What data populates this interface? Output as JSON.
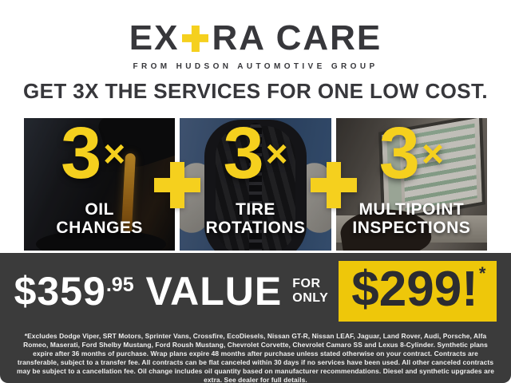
{
  "colors": {
    "accent_yellow": "#F5D01E",
    "sale_box_yellow": "#EEC70A",
    "charcoal_text": "#37373B",
    "band_gray": "#3B3B3B"
  },
  "logo": {
    "prefix": "EX",
    "plus_glyph": "+",
    "suffix": "RA CARE",
    "tagline": "FROM HUDSON AUTOMOTIVE GROUP"
  },
  "headline": "GET 3X THE SERVICES FOR ONE LOW COST.",
  "services": [
    {
      "number": "3",
      "times": "×",
      "label_line1": "OIL",
      "label_line2": "CHANGES",
      "photo": "motor-oil-pouring-from-bottle"
    },
    {
      "number": "3",
      "times": "×",
      "label_line1": "TIRE",
      "label_line2": "ROTATIONS",
      "photo": "mechanic-holding-tire"
    },
    {
      "number": "3",
      "times": "×",
      "label_line1": "MULTIPOINT",
      "label_line2": "INSPECTIONS",
      "photo": "laptop-inspection-checklist"
    }
  ],
  "plus_separator": "+",
  "offer": {
    "value_dollars": "$359",
    "value_cents": ".95",
    "value_word": "VALUE",
    "for_word": "FOR",
    "only_word": "ONLY",
    "sale_price": "$299!",
    "footnote_mark": "*"
  },
  "disclaimer": "*Excludes Dodge Viper, SRT Motors, Sprinter Vans, Crossfire, EcoDiesels, Nissan GT-R, Nissan LEAF, Jaguar, Land Rover, Audi, Porsche, Alfa Romeo, Maserati, Ford Shelby Mustang, Ford Roush Mustang, Chevrolet Corvette, Chevrolet Camaro SS and Lexus 8-Cylinder. Synthetic plans expire after 36 months of purchase. Wrap plans expire 48 months after purchase unless stated otherwise on your contract. Contracts are transferable, subject to a transfer fee. All contracts can be flat canceled within 30 days if no services have been used. All other canceled contracts may be subject to a cancellation fee. Oil change includes oil quantity based on manufacturer recommendations. Diesel and synthetic upgrades are extra. See dealer for full details."
}
